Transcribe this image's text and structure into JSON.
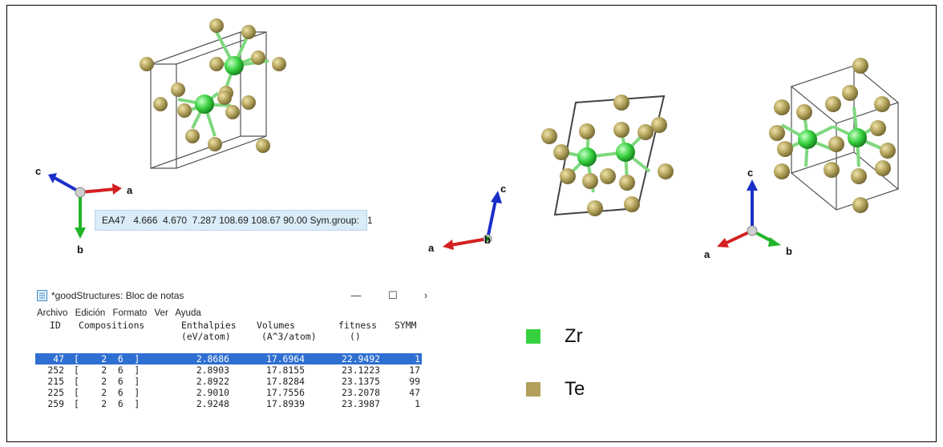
{
  "colors": {
    "zr": "#37d13f",
    "te": "#b0a05a",
    "cell_edge": "#555555",
    "axis_a": "#d42020",
    "axis_b": "#22b42a",
    "axis_c": "#1a2ec8"
  },
  "axes_triad": {
    "a": "a",
    "b": "b",
    "c": "c"
  },
  "info_bar": {
    "text": "EA47   4.666  4.670  7.287 108.69 108.67 90.00 Sym.group:   1"
  },
  "notepad": {
    "title": "*goodStructures: Bloc de notas",
    "window_buttons": [
      "—",
      "☐",
      "›"
    ],
    "menu": [
      "Archivo",
      "Edición",
      "Formato",
      "Ver",
      "Ayuda"
    ],
    "headers": {
      "id": "ID",
      "compositions": "Compositions",
      "enthalpies": "Enthalpies",
      "enthalpies_unit": "(eV/atom)",
      "volumes": "Volumes",
      "volumes_unit": "(A^3/atom)",
      "fitness": "fitness",
      "fitness_unit": "()",
      "symm": "SYMM"
    },
    "rows": [
      {
        "id": "47",
        "comp": "[    2  6  ]",
        "enthalpy": "2.8686",
        "volume": "17.6964",
        "fitness": "22.9492",
        "symm": "1",
        "selected": true
      },
      {
        "id": "252",
        "comp": "[    2  6  ]",
        "enthalpy": "2.8903",
        "volume": "17.8155",
        "fitness": "23.1223",
        "symm": "17",
        "selected": false
      },
      {
        "id": "215",
        "comp": "[    2  6  ]",
        "enthalpy": "2.8922",
        "volume": "17.8284",
        "fitness": "23.1375",
        "symm": "99",
        "selected": false
      },
      {
        "id": "225",
        "comp": "[    2  6  ]",
        "enthalpy": "2.9010",
        "volume": "17.7556",
        "fitness": "23.2078",
        "symm": "47",
        "selected": false
      },
      {
        "id": "259",
        "comp": "[    2  6  ]",
        "enthalpy": "2.9248",
        "volume": "17.8939",
        "fitness": "23.3987",
        "symm": "1",
        "selected": false
      }
    ]
  },
  "legend": [
    {
      "label": "Zr",
      "color": "#37d13f"
    },
    {
      "label": "Te",
      "color": "#b0a05a"
    }
  ]
}
